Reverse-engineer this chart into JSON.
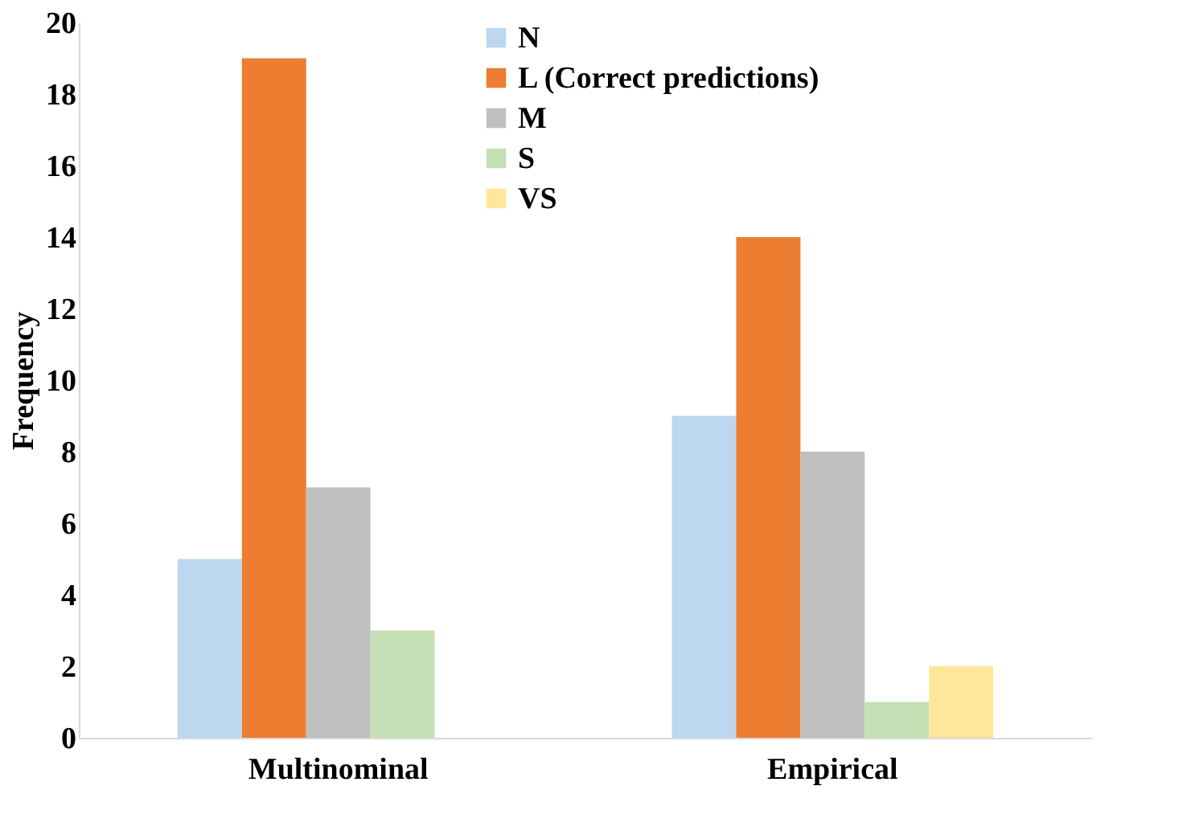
{
  "chart_data": {
    "type": "bar",
    "ylabel": "Frequency",
    "categories": [
      "Multinominal",
      "Empirical"
    ],
    "series": [
      {
        "name": "N",
        "color": "#bdd7ee",
        "values": [
          5,
          9
        ]
      },
      {
        "name": "L (Correct predictions)",
        "color": "#ed7d31",
        "values": [
          19,
          14
        ]
      },
      {
        "name": "M",
        "color": "#bfbfbf",
        "values": [
          7,
          8
        ]
      },
      {
        "name": "S",
        "color": "#c5e0b4",
        "values": [
          3,
          1
        ]
      },
      {
        "name": "VS",
        "color": "#ffe699",
        "values": [
          0,
          2
        ]
      }
    ],
    "ylim": [
      0,
      20
    ],
    "yticks": [
      0,
      2,
      4,
      6,
      8,
      10,
      12,
      14,
      16,
      18,
      20
    ],
    "grid": false,
    "legend": "top"
  }
}
